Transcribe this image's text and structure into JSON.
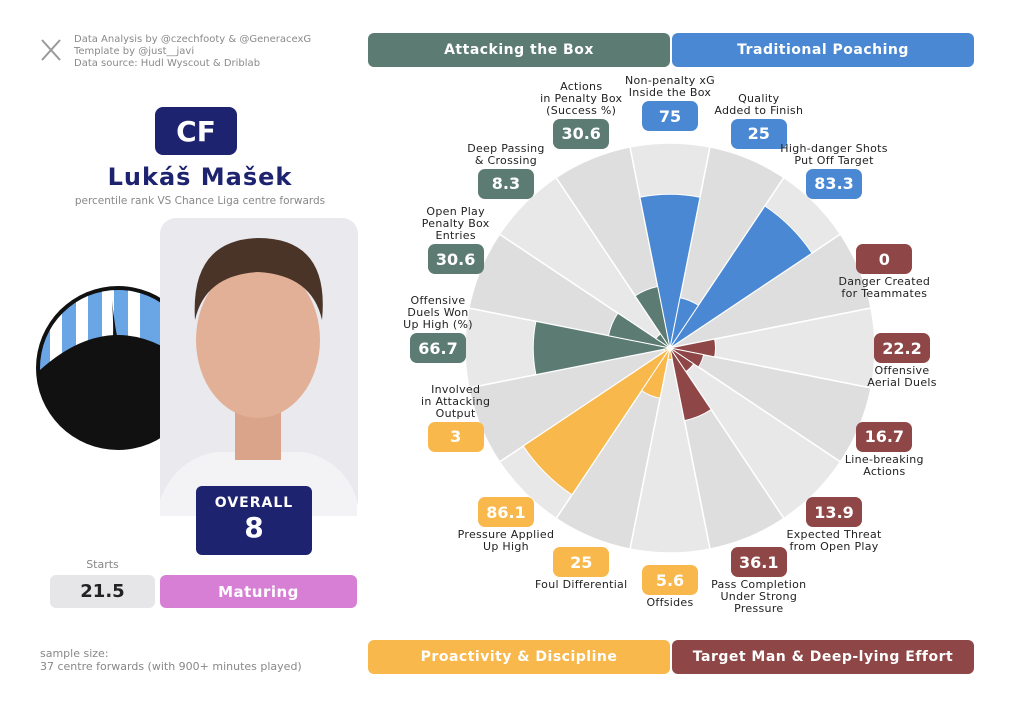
{
  "credits": [
    "Data Analysis by @czechfooty & @GeneracexG",
    "Template by @just__javi",
    "Data source: Hudl Wyscout & Driblab"
  ],
  "player": {
    "position": "CF",
    "name": "Lukáš Mašek",
    "subtitle": "percentile rank VS Chance Liga centre forwards",
    "overall_label": "OVERALL",
    "overall": "8",
    "starts_label": "Starts",
    "starts": "21.5",
    "status": "Maturing"
  },
  "footer": {
    "sample": "sample size:\n37 centre forwards (with 900+ minutes played)"
  },
  "chart_data": {
    "type": "polar",
    "ylim": [
      0,
      100
    ],
    "series": [
      {
        "name": "Attacking the Box",
        "color": "#5b7b73",
        "categories": [
          "Offensive\nDuels Won\nUp High (%)",
          "Open Play\nPenalty Box\nEntries",
          "Deep Passing\n& Crossing",
          "Actions\nin Penalty Box\n(Success %)"
        ],
        "values": [
          66.7,
          30.6,
          8.3,
          30.6
        ]
      },
      {
        "name": "Traditional Poaching",
        "color": "#4a88d4",
        "categories": [
          "Non-penalty xG\nInside the Box",
          "Quality\nAdded to Finish",
          "High-danger Shots\nPut Off Target"
        ],
        "values": [
          75,
          25,
          83.3
        ]
      },
      {
        "name": "Target Man & Deep-lying Effort",
        "color": "#8e4646",
        "categories": [
          "Danger Created\nfor Teammates",
          "Offensive\nAerial Duels",
          "Line-breaking\nActions",
          "Expected Threat\nfrom Open Play",
          "Pass Completion\nUnder Strong\nPressure"
        ],
        "values": [
          0,
          22.2,
          16.7,
          13.9,
          36.1
        ]
      },
      {
        "name": "Proactivity & Discipline",
        "color": "#f8b84c",
        "categories": [
          "Offsides",
          "Foul Differential",
          "Pressure Applied\nUp High",
          "Involved\nin Attacking\nOutput"
        ],
        "values": [
          5.6,
          25,
          86.1,
          3
        ]
      }
    ]
  }
}
